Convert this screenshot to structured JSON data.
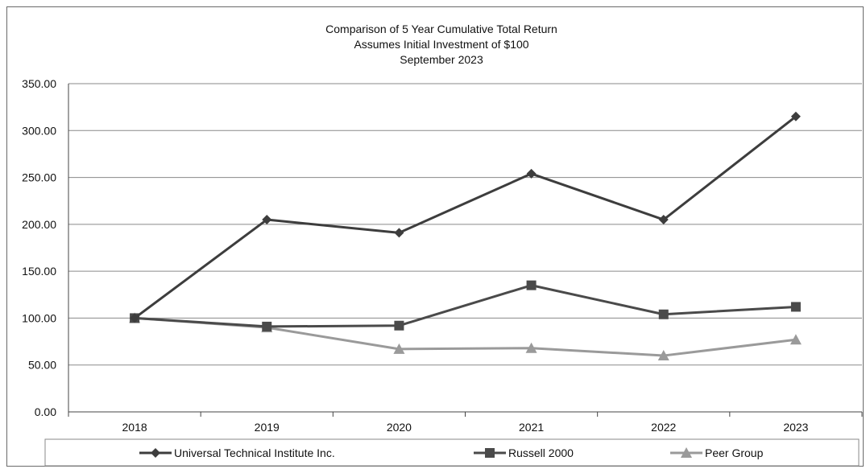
{
  "chart_data": {
    "type": "line",
    "title": "Comparison of 5 Year Cumulative Total Return",
    "subtitle": [
      "Assumes Initial Investment of $100",
      "September 2023"
    ],
    "xlabel": "",
    "ylabel": "",
    "categories": [
      "2018",
      "2019",
      "2020",
      "2021",
      "2022",
      "2023"
    ],
    "ylim": [
      0,
      350
    ],
    "yticks": [
      "0.00",
      "50.00",
      "100.00",
      "150.00",
      "200.00",
      "250.00",
      "300.00",
      "350.00"
    ],
    "grid": true,
    "legend_position": "bottom",
    "series": [
      {
        "name": "Universal Technical Institute Inc.",
        "marker": "diamond",
        "color": "#3d3d3d",
        "values": [
          100,
          205,
          191,
          254,
          205,
          315
        ]
      },
      {
        "name": "Russell 2000",
        "marker": "square",
        "color": "#4a4a4a",
        "values": [
          100,
          91,
          92,
          135,
          104,
          112
        ]
      },
      {
        "name": "Peer Group",
        "marker": "triangle",
        "color": "#9a9a9a",
        "values": [
          100,
          90,
          67,
          68,
          60,
          77
        ]
      }
    ]
  }
}
